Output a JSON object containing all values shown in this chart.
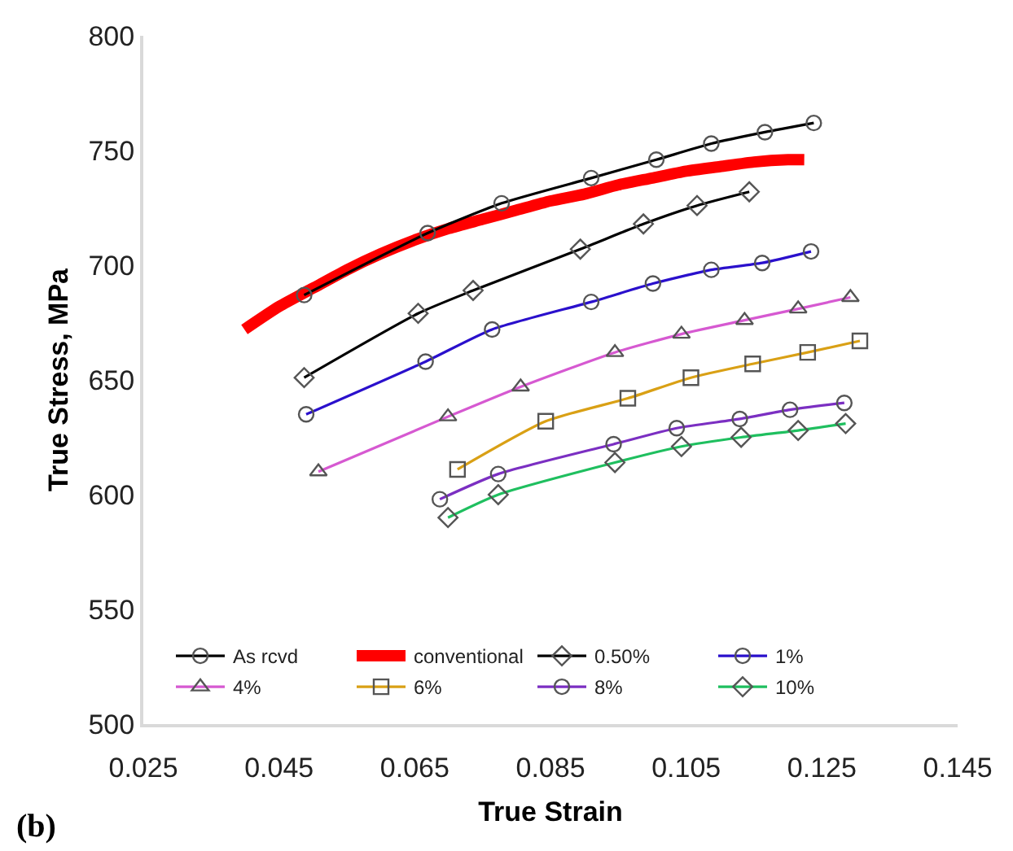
{
  "chart_data": {
    "type": "line",
    "xlabel": "True Strain",
    "ylabel": "True Stress, MPa",
    "xlim": [
      0.025,
      0.145
    ],
    "xticks": [
      0.025,
      0.045,
      0.065,
      0.085,
      0.105,
      0.125,
      0.145
    ],
    "ylim": [
      500,
      800
    ],
    "yticks": [
      500,
      550,
      600,
      650,
      700,
      750,
      800
    ],
    "legend": "bottom",
    "line_style": "solid",
    "annotations": [
      "(b)"
    ],
    "series": [
      {
        "name": "As rcvd",
        "color": "#000000",
        "marker": "circle",
        "x": [
          0.0487,
          0.0669,
          0.0778,
          0.091,
          0.1006,
          0.1087,
          0.1166,
          0.1238
        ],
        "values": [
          687,
          714,
          727,
          738,
          746,
          753,
          758,
          762
        ]
      },
      {
        "name": "conventional",
        "color": "#ff0000",
        "marker": "none",
        "x": [
          0.0399,
          0.045,
          0.05,
          0.055,
          0.06,
          0.065,
          0.07,
          0.075,
          0.08,
          0.085,
          0.09,
          0.095,
          0.1,
          0.105,
          0.11,
          0.115,
          0.12,
          0.1224
        ],
        "values": [
          672,
          682,
          690,
          698,
          705,
          711,
          716,
          720,
          724,
          728,
          731,
          735,
          738,
          741,
          743,
          745,
          746,
          746
        ]
      },
      {
        "name": "0.50%",
        "color": "#000000",
        "marker": "diamond",
        "x": [
          0.0487,
          0.0655,
          0.0736,
          0.0894,
          0.0987,
          0.1066,
          0.1143
        ],
        "values": [
          651,
          679,
          689,
          707,
          718,
          726,
          732
        ]
      },
      {
        "name": "1%",
        "color": "#2a10cc",
        "marker": "circle",
        "x": [
          0.049,
          0.0666,
          0.0764,
          0.091,
          0.1001,
          0.1087,
          0.1162,
          0.1234
        ],
        "values": [
          635,
          658,
          672,
          684,
          692,
          698,
          701,
          706
        ]
      },
      {
        "name": "4%",
        "color": "#d659d1",
        "marker": "triangle",
        "x": [
          0.0508,
          0.0699,
          0.0806,
          0.0945,
          0.1043,
          0.1136,
          0.1215,
          0.1292
        ],
        "values": [
          610,
          634,
          647,
          662,
          670,
          676,
          681,
          686
        ]
      },
      {
        "name": "6%",
        "color": "#d9a015",
        "marker": "square",
        "x": [
          0.0713,
          0.0843,
          0.0964,
          0.1057,
          0.1148,
          0.1229,
          0.1306
        ],
        "values": [
          611,
          632,
          642,
          651,
          657,
          662,
          667
        ]
      },
      {
        "name": "8%",
        "color": "#7b2fc2",
        "marker": "circle",
        "x": [
          0.0687,
          0.0773,
          0.0943,
          0.1036,
          0.1129,
          0.1203,
          0.1283
        ],
        "values": [
          598,
          609,
          622,
          629,
          633,
          637,
          640
        ]
      },
      {
        "name": "10%",
        "color": "#1fbf5f",
        "marker": "diamond",
        "x": [
          0.0699,
          0.0773,
          0.0945,
          0.1043,
          0.1131,
          0.1215,
          0.1285
        ],
        "values": [
          590,
          600,
          614,
          621,
          625,
          628,
          631
        ]
      }
    ]
  }
}
